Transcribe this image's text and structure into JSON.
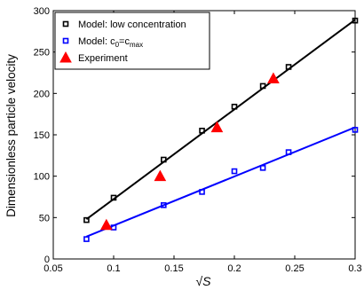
{
  "chart_data": {
    "type": "scatter",
    "xlabel": "√S",
    "ylabel": "Dimensionless particle velocity",
    "xlim": [
      0.05,
      0.3
    ],
    "ylim": [
      0,
      300
    ],
    "xticks": [
      "0.05",
      "0.1",
      "0.15",
      "0.2",
      "0.25",
      "0.3"
    ],
    "yticks": [
      "0",
      "50",
      "100",
      "150",
      "200",
      "250",
      "300"
    ],
    "grid": false,
    "legend_position": "top-left",
    "series": [
      {
        "name": "Model: low concentration",
        "marker": "open-square",
        "color": "#000000",
        "x": [
          0.0775,
          0.1,
          0.1414,
          0.1732,
          0.2,
          0.2236,
          0.2449,
          0.3
        ],
        "y": [
          47,
          74,
          120,
          155,
          184,
          209,
          232,
          288
        ],
        "fit_line": [
          [
            0.0775,
            48
          ],
          [
            0.3,
            289
          ]
        ]
      },
      {
        "name": "Model: c0=cmax",
        "name_parts": {
          "prefix": "Model: c",
          "sub1": "0",
          "mid": "=c",
          "sub2": "max"
        },
        "marker": "open-square",
        "color": "#0000ff",
        "x": [
          0.0775,
          0.1,
          0.1414,
          0.1732,
          0.2,
          0.2236,
          0.2449,
          0.3
        ],
        "y": [
          24,
          38,
          65,
          81,
          106,
          110,
          129,
          156
        ],
        "fit_line": [
          [
            0.0775,
            27
          ],
          [
            0.3,
            159
          ]
        ]
      },
      {
        "name": "Experiment",
        "marker": "filled-triangle",
        "color": "#ff0000",
        "x": [
          0.094,
          0.1385,
          0.1856,
          0.2323
        ],
        "y": [
          41,
          100,
          159,
          218
        ]
      }
    ]
  }
}
